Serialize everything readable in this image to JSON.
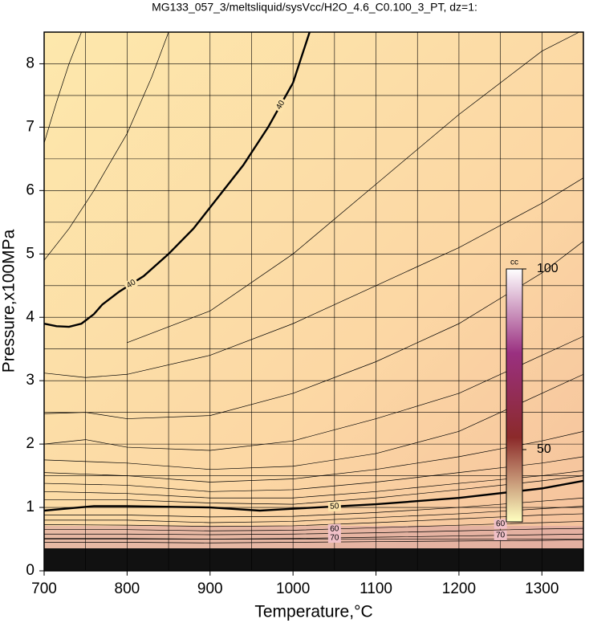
{
  "chart_data": {
    "type": "contour",
    "title": "MG133_057_3/meltsliquid/sysVcc/H2O_4.6_C0.100_3_PT, dz=1:",
    "x_label": "Temperature,°C",
    "y_label": "Pressure,x100MPa",
    "xlim": [
      700,
      1350
    ],
    "ylim": [
      0,
      8.5
    ],
    "xticks": [
      700,
      800,
      900,
      1000,
      1100,
      1200,
      1300
    ],
    "yticks": [
      0,
      1,
      2,
      3,
      4,
      5,
      6,
      7,
      8
    ],
    "xgrid": [
      750,
      800,
      850,
      900,
      950,
      1000,
      1050,
      1100,
      1150,
      1200,
      1250,
      1300
    ],
    "ygrid": [
      0.5,
      1,
      1.5,
      2,
      2.5,
      3,
      3.5,
      4,
      4.5,
      5,
      5.5,
      6,
      6.5,
      7,
      7.5,
      8
    ],
    "contours": [
      {
        "level": 40,
        "bold": true,
        "x": [
          700,
          715,
          730,
          745,
          760,
          770,
          790,
          820,
          850,
          880,
          910,
          940,
          970,
          1000,
          1020
        ],
        "y": [
          3.9,
          3.86,
          3.85,
          3.9,
          4.05,
          4.2,
          4.4,
          4.65,
          5.0,
          5.4,
          5.9,
          6.4,
          7.0,
          7.7,
          8.5
        ]
      },
      {
        "x": [
          700,
          715,
          730,
          745
        ],
        "y": [
          6.75,
          7.4,
          8.0,
          8.5
        ]
      },
      {
        "x": [
          700,
          730,
          760,
          800,
          830,
          850
        ],
        "y": [
          4.9,
          5.4,
          6.0,
          6.9,
          7.8,
          8.5
        ]
      },
      {
        "x": [
          800,
          900,
          1000,
          1100,
          1200,
          1300,
          1345
        ],
        "y": [
          3.6,
          4.1,
          5.0,
          6.1,
          7.2,
          8.2,
          8.5
        ]
      },
      {
        "x": [
          700,
          750,
          800,
          900,
          1000,
          1100,
          1200,
          1300,
          1350
        ],
        "y": [
          3.12,
          3.05,
          3.1,
          3.4,
          3.9,
          4.5,
          5.1,
          5.8,
          6.2
        ]
      },
      {
        "x": [
          700,
          750,
          800,
          900,
          1000,
          1100,
          1200,
          1300,
          1350
        ],
        "y": [
          2.48,
          2.5,
          2.4,
          2.45,
          2.8,
          3.3,
          3.9,
          4.7,
          5.2
        ]
      },
      {
        "x": [
          700,
          750,
          800,
          900,
          1000,
          1100,
          1200,
          1300,
          1350
        ],
        "y": [
          2.0,
          2.07,
          1.95,
          1.9,
          2.05,
          2.4,
          2.8,
          3.4,
          3.7
        ]
      },
      {
        "x": [
          700,
          800,
          900,
          1000,
          1100,
          1200,
          1300,
          1350
        ],
        "y": [
          1.75,
          1.7,
          1.6,
          1.65,
          1.85,
          2.2,
          2.8,
          3.1
        ]
      },
      {
        "x": [
          700,
          800,
          900,
          1000,
          1100,
          1200,
          1300,
          1350
        ],
        "y": [
          1.55,
          1.5,
          1.4,
          1.45,
          1.6,
          1.8,
          2.05,
          2.2
        ]
      },
      {
        "x": [
          700,
          800,
          900,
          1000,
          1100,
          1200,
          1300,
          1350
        ],
        "y": [
          1.38,
          1.35,
          1.25,
          1.28,
          1.4,
          1.55,
          1.7,
          1.8
        ]
      },
      {
        "x": [
          700,
          800,
          900,
          1000,
          1100,
          1200,
          1300,
          1350
        ],
        "y": [
          1.25,
          1.22,
          1.15,
          1.15,
          1.25,
          1.38,
          1.5,
          1.58
        ]
      },
      {
        "x": [
          700,
          800,
          900,
          1000,
          1100,
          1200,
          1300,
          1350
        ],
        "y": [
          1.12,
          1.12,
          1.07,
          1.05,
          1.15,
          1.28,
          1.42,
          1.5
        ]
      },
      {
        "level": 50,
        "bold": true,
        "x": [
          700,
          760,
          800,
          900,
          960,
          1000,
          1100,
          1200,
          1300,
          1350
        ],
        "y": [
          0.95,
          1.02,
          1.02,
          1.0,
          0.95,
          0.98,
          1.05,
          1.15,
          1.3,
          1.42
        ]
      },
      {
        "x": [
          700,
          800,
          900,
          1000,
          1100,
          1200,
          1300,
          1350
        ],
        "y": [
          0.88,
          0.88,
          0.85,
          0.86,
          0.92,
          1.0,
          1.1,
          1.15
        ]
      },
      {
        "x": [
          700,
          800,
          900,
          1000,
          1100,
          1200,
          1300,
          1350
        ],
        "y": [
          0.8,
          0.8,
          0.76,
          0.78,
          0.84,
          0.9,
          0.98,
          1.02
        ]
      },
      {
        "x": [
          700,
          800,
          900,
          1000,
          1100,
          1200,
          1300,
          1350
        ],
        "y": [
          0.73,
          0.72,
          0.7,
          0.71,
          0.76,
          0.82,
          0.88,
          0.9
        ]
      },
      {
        "level": 60,
        "x": [
          700,
          800,
          900,
          1000,
          1100,
          1200,
          1300,
          1350
        ],
        "y": [
          0.65,
          0.65,
          0.63,
          0.64,
          0.68,
          0.72,
          0.76,
          0.78
        ]
      },
      {
        "x": [
          700,
          800,
          900,
          1000,
          1100,
          1200,
          1300,
          1350
        ],
        "y": [
          0.58,
          0.58,
          0.57,
          0.58,
          0.6,
          0.63,
          0.66,
          0.67
        ]
      },
      {
        "level": 70,
        "x": [
          700,
          800,
          900,
          1000,
          1100,
          1200,
          1300,
          1350
        ],
        "y": [
          0.51,
          0.51,
          0.5,
          0.51,
          0.53,
          0.55,
          0.57,
          0.58
        ]
      },
      {
        "x": [
          700,
          800,
          900,
          1000,
          1100,
          1200,
          1300,
          1350
        ],
        "y": [
          0.45,
          0.45,
          0.44,
          0.45,
          0.46,
          0.47,
          0.48,
          0.49
        ]
      }
    ],
    "colorbar": {
      "title": "cc",
      "lim": [
        30,
        100
      ],
      "ticks": [
        50,
        100
      ],
      "colors": [
        "#ffffc0",
        "#8b2a2a",
        "#9a3080",
        "#ffffff"
      ]
    }
  }
}
